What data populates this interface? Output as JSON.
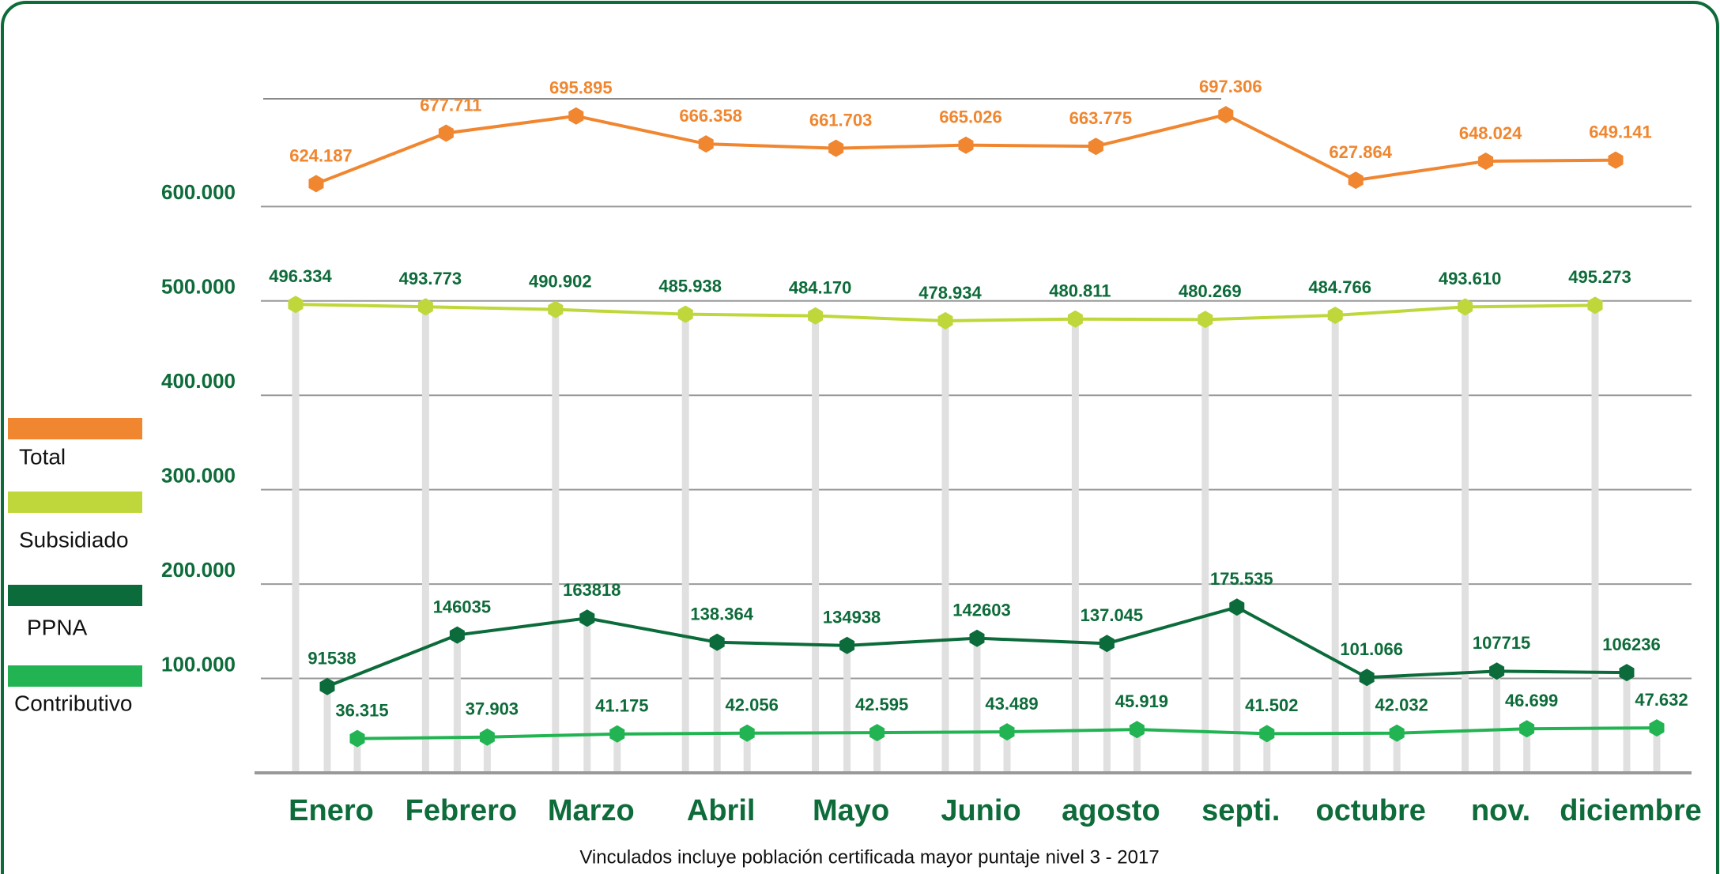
{
  "chart_data": {
    "type": "line",
    "footnote": "Vinculados incluye población certificada  mayor puntaje nivel 3 - 2017",
    "categories": [
      "Enero",
      "Febrero",
      "Marzo",
      "Abril",
      "Mayo",
      "Junio",
      "agosto",
      "septi.",
      "octubre",
      "nov.",
      "diciembre"
    ],
    "series": [
      {
        "name": "Total",
        "color": "#f0862f",
        "values": [
          624187,
          677711,
          695895,
          666358,
          661703,
          665026,
          663775,
          697306,
          627864,
          648024,
          649141
        ],
        "value_labels": [
          "624.187",
          "677.711",
          "695.895",
          "666.358",
          "661.703",
          "665.026",
          "663.775",
          "697.306",
          "627.864",
          "648.024",
          "649.141"
        ]
      },
      {
        "name": "Subsidiado",
        "color": "#bfd73a",
        "values": [
          496334,
          493773,
          490902,
          485938,
          484170,
          478934,
          480811,
          480269,
          484766,
          493610,
          495273
        ],
        "value_labels": [
          "496.334",
          "493.773",
          "490.902",
          "485.938",
          "484.170",
          "478.934",
          "480.811",
          "480.269",
          "484.766",
          "493.610",
          "495.273"
        ]
      },
      {
        "name": "PPNA",
        "color": "#0b6b3a",
        "values": [
          91538,
          146035,
          163818,
          138364,
          134938,
          142603,
          137045,
          175535,
          101066,
          107715,
          106236
        ],
        "value_labels": [
          "91538",
          "146035",
          "163818",
          "138.364",
          "134938",
          "142603",
          "137.045",
          "175.535",
          "101.066",
          "107715",
          "106236"
        ]
      },
      {
        "name": "Contributivo",
        "color": "#22b452",
        "values": [
          36315,
          37903,
          41175,
          42056,
          42595,
          43489,
          45919,
          41502,
          42032,
          46699,
          47632
        ],
        "value_labels": [
          "36.315",
          "37.903",
          "41.175",
          "42.056",
          "42.595",
          "43.489",
          "45.919",
          "41.502",
          "42.032",
          "46.699",
          "47.632"
        ]
      }
    ],
    "ylim": [
      0,
      720000
    ],
    "yticks": [
      {
        "value": 100000,
        "label": "100.000"
      },
      {
        "value": 200000,
        "label": "200.000"
      },
      {
        "value": 300000,
        "label": "300.000"
      },
      {
        "value": 400000,
        "label": "400.000"
      },
      {
        "value": 500000,
        "label": "500.000"
      },
      {
        "value": 600000,
        "label": "600.000"
      }
    ],
    "grid": true,
    "legend": "left"
  }
}
